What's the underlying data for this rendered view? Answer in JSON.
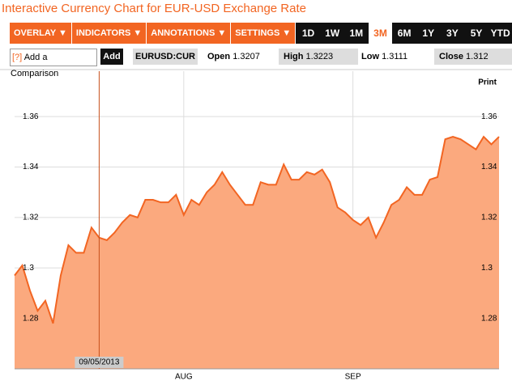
{
  "header": {
    "title": "Interactive Currency Chart for EUR-USD Exchange Rate"
  },
  "toolbar": {
    "menus": [
      "OVERLAY ▼",
      "INDICATORS ▼",
      "ANNOTATIONS ▼",
      "SETTINGS ▼"
    ],
    "ranges": [
      "1D",
      "1W",
      "1M",
      "3M",
      "6M",
      "1Y",
      "3Y",
      "5Y",
      "YTD"
    ],
    "selected_range": 3
  },
  "comparison": {
    "help": "[?]",
    "placeholder": "Add a Comparison",
    "button": "Add"
  },
  "quote": {
    "symbol": "EURUSD:CUR",
    "open_label": "Open",
    "open": 1.3207,
    "high_label": "High",
    "high": 1.3223,
    "low_label": "Low",
    "low": 1.3111,
    "close_label": "Close",
    "close": 1.312
  },
  "print": "Print",
  "chart_data": {
    "type": "area",
    "categories": [
      null,
      null,
      null,
      null,
      null,
      null,
      null,
      null,
      null,
      null,
      null,
      null,
      null,
      null,
      null,
      null,
      null,
      null,
      null,
      null,
      null,
      null,
      "AUG",
      null,
      null,
      null,
      null,
      null,
      null,
      null,
      null,
      null,
      null,
      null,
      null,
      null,
      null,
      null,
      null,
      null,
      null,
      null,
      null,
      null,
      "SEP",
      null,
      null,
      null,
      null,
      null,
      null,
      null,
      null,
      null,
      null,
      null,
      null,
      null,
      null,
      null,
      null,
      null,
      null,
      null
    ],
    "values": [
      1.297,
      1.301,
      1.291,
      1.283,
      1.287,
      1.278,
      1.297,
      1.309,
      1.306,
      1.306,
      1.316,
      1.312,
      1.311,
      1.314,
      1.318,
      1.321,
      1.32,
      1.327,
      1.327,
      1.326,
      1.326,
      1.329,
      1.321,
      1.327,
      1.325,
      1.33,
      1.333,
      1.338,
      1.333,
      1.329,
      1.325,
      1.325,
      1.334,
      1.333,
      1.333,
      1.341,
      1.335,
      1.335,
      1.338,
      1.337,
      1.339,
      1.334,
      1.324,
      1.322,
      1.319,
      1.317,
      1.32,
      1.312,
      1.318,
      1.325,
      1.327,
      1.332,
      1.329,
      1.329,
      1.335,
      1.336,
      1.351,
      1.352,
      1.351,
      1.349,
      1.347,
      1.352,
      1.349,
      1.352
    ],
    "cursor_label": "09/05/2013",
    "color": "#f26522",
    "fill": "#fba97e",
    "ylim": [
      1.26,
      1.378
    ],
    "yticks": [
      1.28,
      1.3,
      1.32,
      1.34,
      1.36
    ],
    "grid": true
  }
}
